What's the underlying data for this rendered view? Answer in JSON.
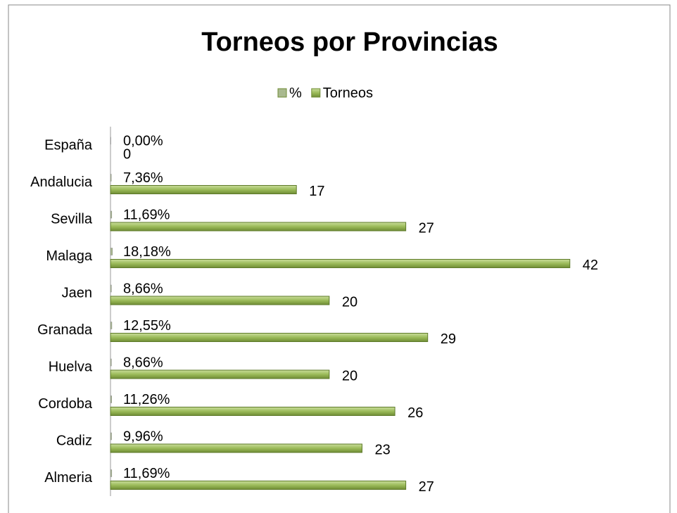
{
  "chart_data": {
    "type": "barh",
    "title": "Torneos por Provincias",
    "categories": [
      "España",
      "Andalucia",
      "Sevilla",
      "Malaga",
      "Jaen",
      "Granada",
      "Huelva",
      "Cordoba",
      "Cadiz",
      "Almeria"
    ],
    "series": [
      {
        "name": "%",
        "color": "#a9b98f",
        "values": [
          0,
          0.0736,
          0.1169,
          0.1818,
          0.0866,
          0.1255,
          0.0866,
          0.1126,
          0.0996,
          0.1169
        ],
        "value_labels": [
          "0,00%",
          "7,36%",
          "11,69%",
          "18,18%",
          "8,66%",
          "12,55%",
          "8,66%",
          "11,26%",
          "9,96%",
          "11,69%"
        ]
      },
      {
        "name": "Torneos",
        "color": "#9bbb59",
        "values": [
          0,
          17,
          27,
          42,
          20,
          29,
          20,
          26,
          23,
          27
        ]
      }
    ],
    "xlim": [
      0,
      48
    ],
    "legend": "top"
  }
}
